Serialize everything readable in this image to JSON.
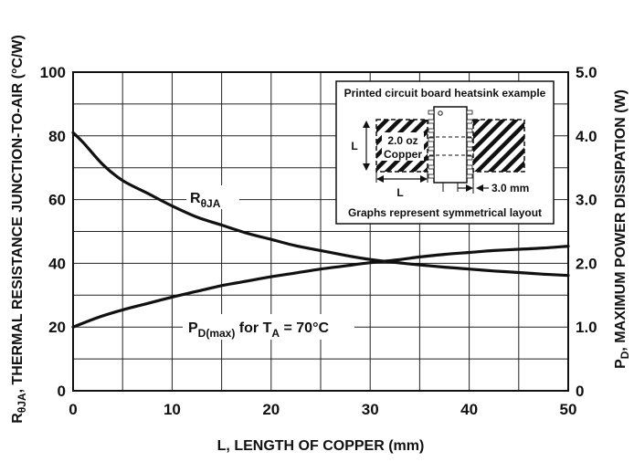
{
  "chart_data": {
    "type": "line",
    "x_axis": {
      "label": "L, LENGTH OF COPPER (mm)",
      "range": [
        0,
        50
      ],
      "ticks": [
        0,
        10,
        20,
        30,
        40,
        50
      ],
      "tick_labels": [
        "0",
        "10",
        "20",
        "30",
        "40",
        "50"
      ]
    },
    "y_axis_left": {
      "label_main": "R",
      "label_sub": "θJA",
      "label_rest": ", THERMAL RESISTANCE JUNCTION-TO-AIR (°C/W)",
      "range": [
        0,
        100
      ],
      "ticks": [
        0,
        20,
        40,
        60,
        80,
        100
      ],
      "tick_labels": [
        "0",
        "20",
        "40",
        "60",
        "80",
        "100"
      ]
    },
    "y_axis_right": {
      "label_main": "P",
      "label_sub": "D",
      "label_rest": ", MAXIMUM POWER DISSIPATION (W)",
      "range": [
        0,
        5
      ],
      "ticks": [
        0,
        1,
        2,
        3,
        4,
        5
      ],
      "tick_labels": [
        "0",
        "1.0",
        "2.0",
        "3.0",
        "4.0",
        "5.0"
      ]
    },
    "grid": true,
    "series": [
      {
        "name_main": "R",
        "name_sub": "θJA",
        "axis": "left",
        "x": [
          0,
          1,
          3,
          5,
          7.5,
          10,
          12.5,
          15,
          17.5,
          20,
          22.5,
          25,
          27.5,
          30,
          32.5,
          35,
          37.5,
          40,
          42.5,
          45,
          47.5,
          50
        ],
        "y": [
          81,
          78,
          71,
          66,
          62,
          58,
          54.5,
          52,
          49.5,
          47.5,
          45.5,
          44,
          42.5,
          41.2,
          40.3,
          39.5,
          38.8,
          38.2,
          37.6,
          37.1,
          36.6,
          36.2
        ]
      },
      {
        "name_main": "P",
        "name_sub": "D(max)",
        "name_rest": " for T",
        "name_sub2": "A",
        "name_rest2": " = 70°C",
        "axis": "right",
        "x": [
          0,
          2.5,
          5,
          7.5,
          10,
          12.5,
          15,
          17.5,
          20,
          22.5,
          25,
          27.5,
          30,
          32.5,
          35,
          37.5,
          40,
          42.5,
          45,
          47.5,
          50
        ],
        "y": [
          1.0,
          1.15,
          1.27,
          1.37,
          1.47,
          1.56,
          1.65,
          1.72,
          1.79,
          1.85,
          1.91,
          1.96,
          2.01,
          2.05,
          2.1,
          2.14,
          2.17,
          2.2,
          2.22,
          2.24,
          2.27
        ]
      }
    ],
    "inset": {
      "title": "Printed circuit board heatsink example",
      "copper_label_1": "2.0 oz",
      "copper_label_2": "Copper",
      "dim_L": "L",
      "dim_3mm": "3.0 mm",
      "footer": "Graphs represent symmetrical layout"
    }
  }
}
